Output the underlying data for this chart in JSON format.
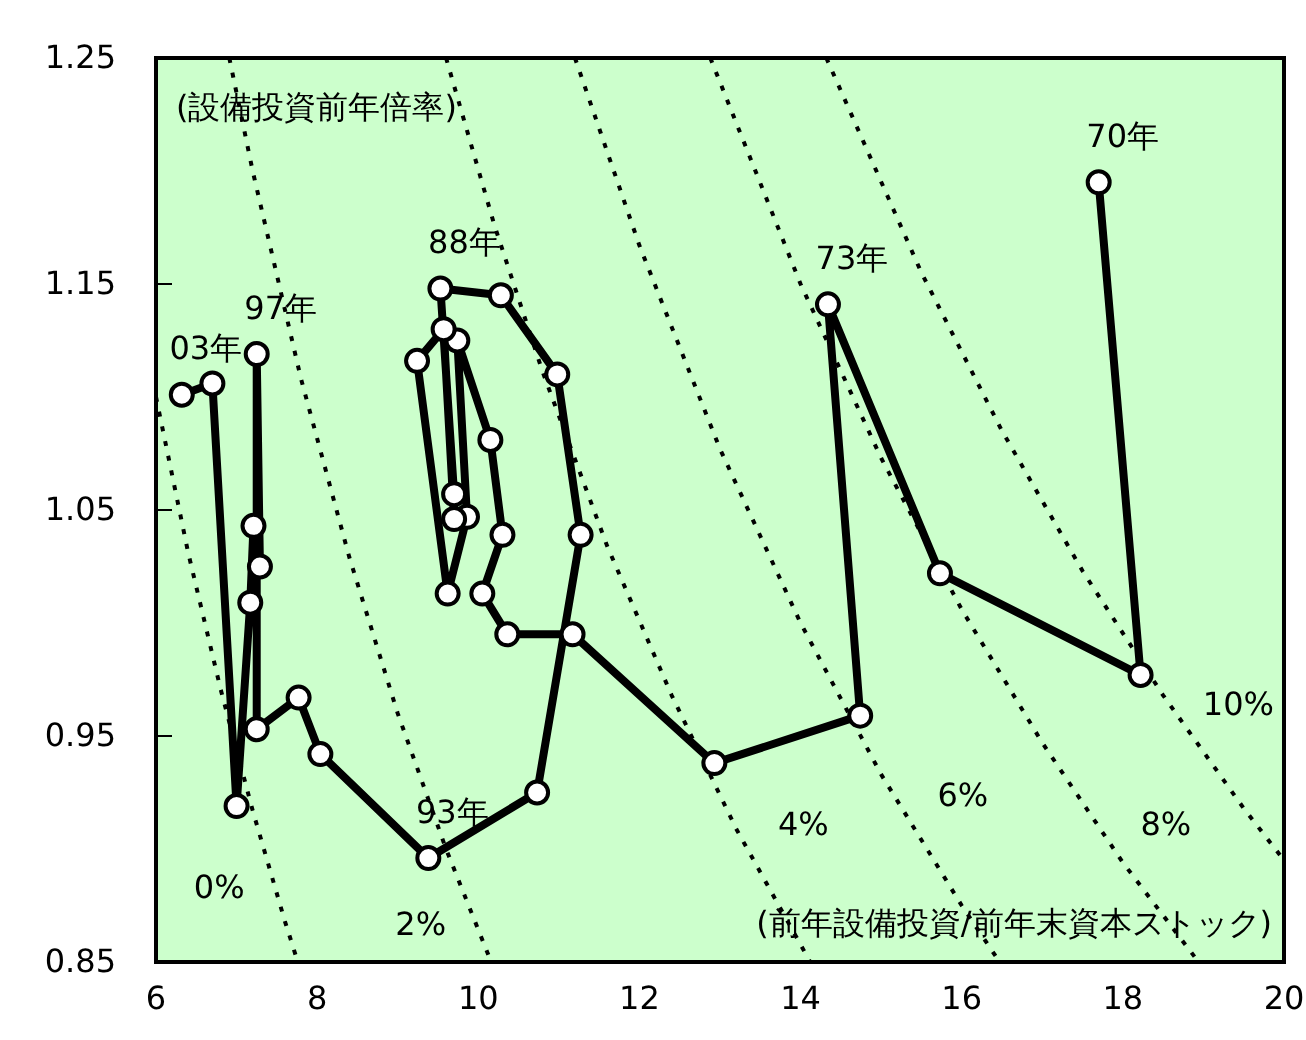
{
  "chart_data": {
    "type": "line",
    "xlabel": "(前年設備投資/前年末資本ストック)",
    "ylabel": "(設備投資前年倍率)",
    "xlim": [
      6,
      20
    ],
    "xticks": [
      6,
      8,
      10,
      12,
      14,
      16,
      18,
      20
    ],
    "ylim": [
      0.85,
      1.25
    ],
    "yticks": [
      {
        "value": 0.85,
        "label": "0.85"
      },
      {
        "value": 0.95,
        "label": "0.95"
      },
      {
        "value": 1.05,
        "label": "1.05"
      },
      {
        "value": 1.15,
        "label": "1.15"
      },
      {
        "value": 1.25,
        "label": "1.25"
      }
    ],
    "marker": "circle",
    "line_style": "solid",
    "series": [
      {
        "color": "#000000",
        "x": [
          17.7,
          18.22,
          15.73,
          14.34,
          14.74,
          12.93,
          11.17,
          10.36,
          10.05,
          10.3,
          10.15,
          9.74,
          9.86,
          9.62,
          9.24,
          9.57,
          9.7,
          9.7,
          9.53,
          10.28,
          10.98,
          11.27,
          10.73,
          9.38,
          8.04,
          7.77,
          7.25,
          7.25,
          7.29,
          7.21,
          7.17,
          7.0,
          6.7,
          6.32
        ],
        "values": [
          1.195,
          0.977,
          1.022,
          1.141,
          0.959,
          0.938,
          0.995,
          0.995,
          1.013,
          1.039,
          1.081,
          1.125,
          1.047,
          1.013,
          1.116,
          1.13,
          1.046,
          1.057,
          1.148,
          1.145,
          1.11,
          1.039,
          0.925,
          0.896,
          0.942,
          0.967,
          0.953,
          1.119,
          1.025,
          1.043,
          1.009,
          0.919,
          1.106,
          1.101
        ]
      },
      {
        "color": "#000000",
        "line_style": "dotted",
        "marker": "none",
        "x": [
          6.0,
          6.4,
          6.8,
          7.2,
          7.6,
          7.76
        ],
        "values": [
          1.1,
          1.031,
          0.971,
          0.917,
          0.868,
          0.85
        ]
      },
      {
        "color": "#000000",
        "line_style": "dotted",
        "marker": "none",
        "x": [
          6.91,
          7.2,
          7.8,
          8.4,
          9.0,
          9.6,
          10.16
        ],
        "values": [
          1.25,
          1.2,
          1.108,
          1.029,
          0.96,
          0.9,
          0.85
        ]
      },
      {
        "color": "#000000",
        "line_style": "dotted",
        "marker": "none",
        "x": [
          9.6,
          10.2,
          10.8,
          11.6,
          12.4,
          13.2,
          14.12
        ],
        "values": [
          1.25,
          1.176,
          1.111,
          1.034,
          0.968,
          0.909,
          0.85
        ]
      },
      {
        "color": "#000000",
        "line_style": "dotted",
        "marker": "none",
        "x": [
          11.2,
          12,
          13,
          14,
          15,
          16,
          16.47
        ],
        "values": [
          1.25,
          1.167,
          1.077,
          1.0,
          0.933,
          0.875,
          0.85
        ]
      },
      {
        "color": "#000000",
        "line_style": "dotted",
        "marker": "none",
        "x": [
          12.88,
          14,
          15,
          16,
          17,
          18,
          18.94
        ],
        "values": [
          1.25,
          1.15,
          1.073,
          1.006,
          0.947,
          0.894,
          0.85
        ]
      },
      {
        "color": "#000000",
        "line_style": "dotted",
        "marker": "none",
        "x": [
          14.32,
          15.5,
          16.5,
          17.5,
          18.5,
          19.5,
          20
        ],
        "values": [
          1.25,
          1.155,
          1.085,
          1.023,
          0.968,
          0.918,
          0.895
        ]
      }
    ],
    "annotations": [
      {
        "text": "70年",
        "x": 17.7,
        "y": 1.195
      },
      {
        "text": "73年",
        "x": 14.34,
        "y": 1.141
      },
      {
        "text": "88年",
        "x": 9.53,
        "y": 1.148
      },
      {
        "text": "03年",
        "x": 6.32,
        "y": 1.101
      },
      {
        "text": "97年",
        "x": 7.25,
        "y": 1.119
      },
      {
        "text": "93年",
        "x": 9.38,
        "y": 0.896
      },
      {
        "text": "0%",
        "x": 7.48,
        "y": 0.882
      },
      {
        "text": "2%",
        "x": 9.98,
        "y": 0.866
      },
      {
        "text": "4%",
        "x": 13.19,
        "y": 0.91
      },
      {
        "text": "6%",
        "x": 15.17,
        "y": 0.923
      },
      {
        "text": "8%",
        "x": 17.69,
        "y": 0.91
      },
      {
        "text": "10%",
        "x": 18.59,
        "y": 0.963
      }
    ]
  }
}
